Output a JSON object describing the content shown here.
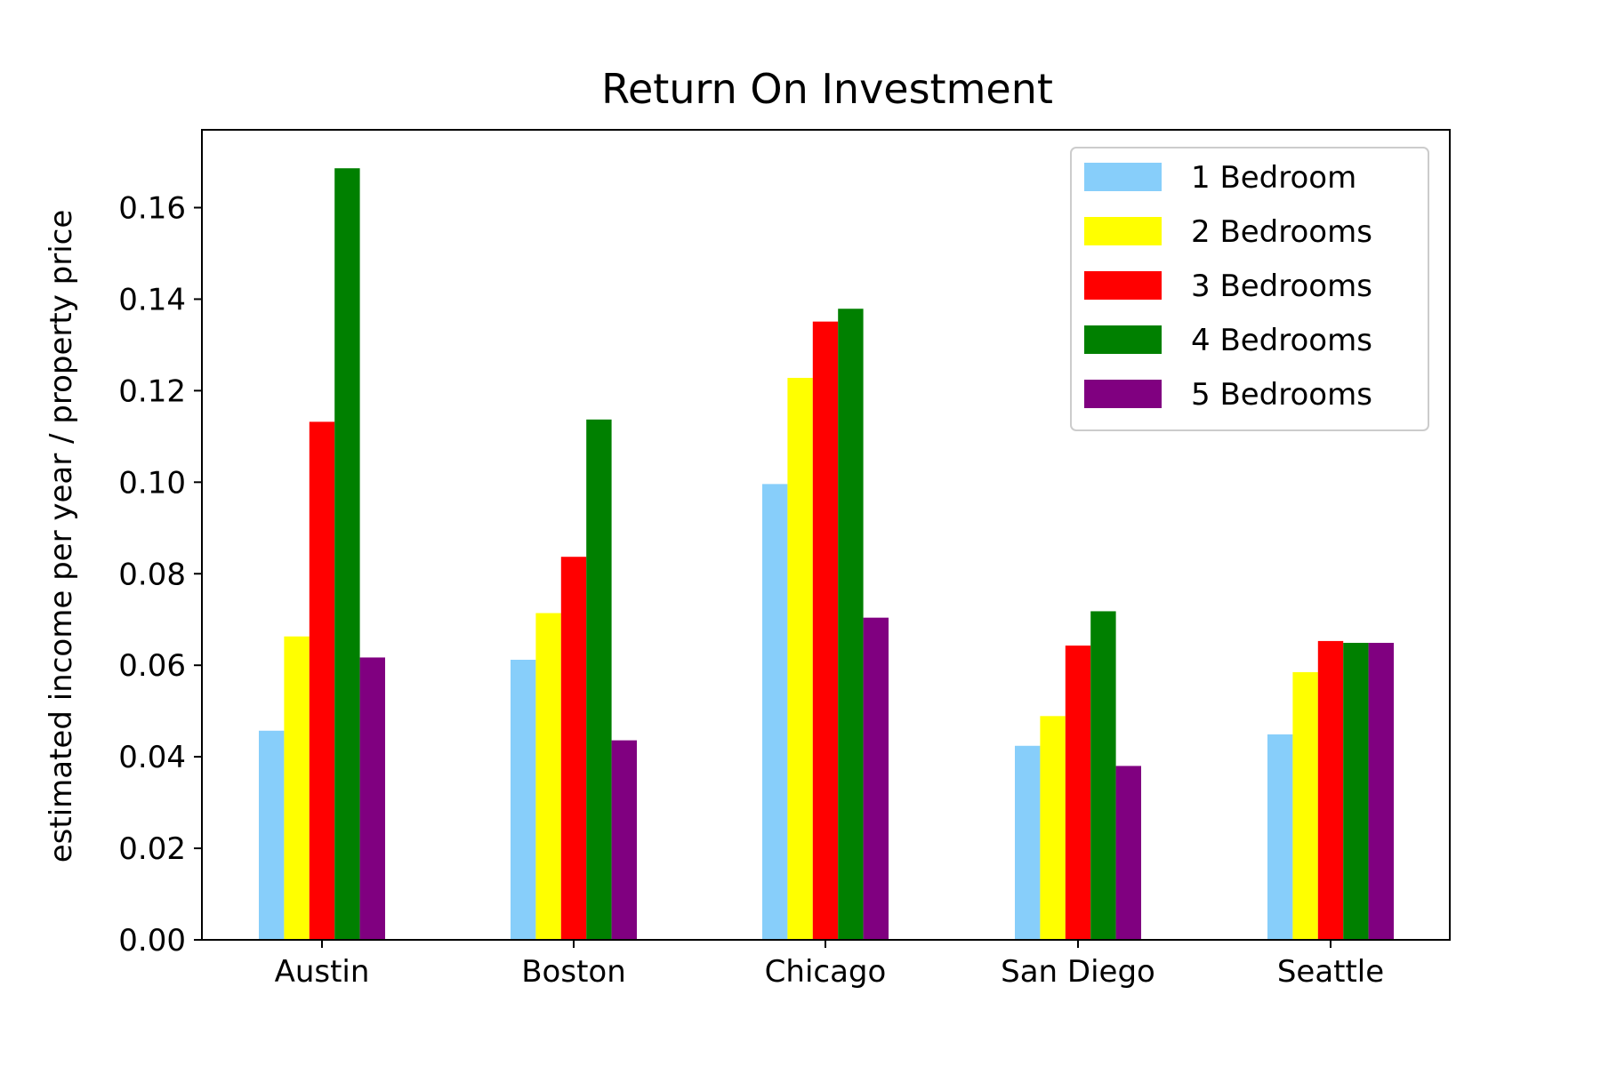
{
  "chart_data": {
    "type": "bar",
    "title": "Return On Investment",
    "xlabel": "",
    "ylabel": "estimated income per year / property price",
    "categories": [
      "Austin",
      "Boston",
      "Chicago",
      "San Diego",
      "Seattle"
    ],
    "ylim": [
      0,
      0.177
    ],
    "yticks": [
      "0.00",
      "0.02",
      "0.04",
      "0.06",
      "0.08",
      "0.10",
      "0.12",
      "0.14",
      "0.16"
    ],
    "grid": false,
    "legend_position": "top-right",
    "series": [
      {
        "name": "1 Bedroom",
        "color": "#87cefa",
        "values": [
          0.0457,
          0.0612,
          0.0996,
          0.0424,
          0.0449
        ]
      },
      {
        "name": "2 Bedrooms",
        "color": "#ffff00",
        "values": [
          0.0663,
          0.0714,
          0.1228,
          0.0489,
          0.0585
        ]
      },
      {
        "name": "3 Bedrooms",
        "color": "#ff0000",
        "values": [
          0.1132,
          0.0837,
          0.1351,
          0.0643,
          0.0653
        ]
      },
      {
        "name": "4 Bedrooms",
        "color": "#008000",
        "values": [
          0.1686,
          0.1137,
          0.1379,
          0.0718,
          0.0649
        ]
      },
      {
        "name": "5 Bedrooms",
        "color": "#800080",
        "values": [
          0.0617,
          0.0436,
          0.0704,
          0.038,
          0.0649
        ]
      }
    ]
  }
}
